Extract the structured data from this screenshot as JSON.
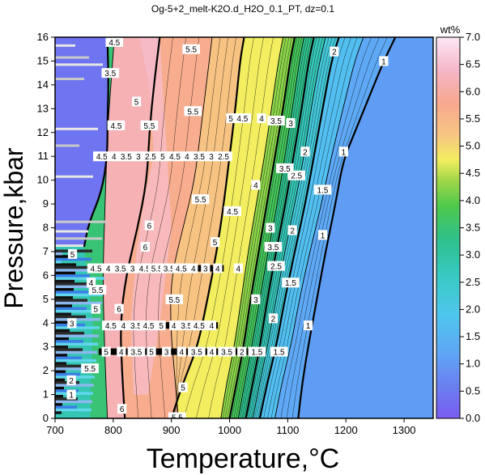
{
  "chart_data": {
    "type": "heatmap",
    "title": "Og-5+2_melt-K2O.d_H2O_0.1_PT, dz=0.1",
    "xlabel": "Temperature,°C",
    "ylabel": "Pressure,kbar",
    "xlim": [
      700,
      1350
    ],
    "ylim": [
      0,
      16
    ],
    "x_ticks": [
      700,
      800,
      900,
      1000,
      1100,
      1200,
      1300
    ],
    "y_ticks": [
      0,
      1,
      2,
      3,
      4,
      5,
      6,
      7,
      8,
      9,
      10,
      11,
      12,
      13,
      14,
      15,
      16
    ],
    "colorbar": {
      "label": "wt%",
      "range": [
        0,
        7
      ],
      "ticks": [
        "0.0",
        "0.5",
        "1.0",
        "1.5",
        "2.0",
        "2.5",
        "3.0",
        "3.5",
        "4.0",
        "4.5",
        "5.0",
        "5.5",
        "6.0",
        "6.5",
        "7.0"
      ],
      "stops": [
        {
          "v": 0.0,
          "color": "#7a5cf0"
        },
        {
          "v": 0.6,
          "color": "#6a80f0"
        },
        {
          "v": 1.2,
          "color": "#5fa6f5"
        },
        {
          "v": 1.9,
          "color": "#4fc6ee"
        },
        {
          "v": 2.6,
          "color": "#38c9c4"
        },
        {
          "v": 3.3,
          "color": "#2fc08a"
        },
        {
          "v": 3.9,
          "color": "#4ec94b"
        },
        {
          "v": 4.4,
          "color": "#a6d84a"
        },
        {
          "v": 4.75,
          "color": "#f2ee60"
        },
        {
          "v": 5.2,
          "color": "#f7c582"
        },
        {
          "v": 5.8,
          "color": "#f7a890"
        },
        {
          "v": 6.4,
          "color": "#f5b6c8"
        },
        {
          "v": 7.0,
          "color": "#fde6f5"
        }
      ]
    },
    "contours": [
      {
        "level": "1",
        "points": [
          [
            1118,
            0
          ],
          [
            1125,
            1.5
          ],
          [
            1135,
            3
          ],
          [
            1150,
            5
          ],
          [
            1165,
            7
          ],
          [
            1182,
            9
          ],
          [
            1195,
            10.8
          ],
          [
            1215,
            12
          ],
          [
            1240,
            13.5
          ],
          [
            1265,
            15
          ],
          [
            1285,
            16
          ]
        ],
        "thick": true
      },
      {
        "level": "1.5",
        "points": [
          [
            1078,
            0
          ],
          [
            1090,
            1.5
          ],
          [
            1105,
            3
          ],
          [
            1120,
            5
          ],
          [
            1138,
            7
          ],
          [
            1158,
            9
          ],
          [
            1175,
            11
          ],
          [
            1195,
            13
          ],
          [
            1215,
            15
          ],
          [
            1230,
            16
          ]
        ],
        "thick": false
      },
      {
        "level": "2",
        "points": [
          [
            1052,
            0
          ],
          [
            1065,
            1.5
          ],
          [
            1080,
            3
          ],
          [
            1095,
            5
          ],
          [
            1112,
            7
          ],
          [
            1130,
            9
          ],
          [
            1145,
            11
          ],
          [
            1160,
            13
          ],
          [
            1175,
            15
          ],
          [
            1188,
            16
          ]
        ],
        "thick": true
      },
      {
        "level": "2.5",
        "points": [
          [
            1040,
            0
          ],
          [
            1052,
            1.5
          ],
          [
            1065,
            3
          ],
          [
            1080,
            5
          ],
          [
            1095,
            7
          ],
          [
            1112,
            9
          ],
          [
            1128,
            11
          ],
          [
            1140,
            13
          ],
          [
            1155,
            15
          ],
          [
            1165,
            16
          ]
        ],
        "thick": false
      },
      {
        "level": "3",
        "points": [
          [
            1028,
            0
          ],
          [
            1040,
            1.5
          ],
          [
            1052,
            3
          ],
          [
            1065,
            5
          ],
          [
            1080,
            7
          ],
          [
            1096,
            9
          ],
          [
            1110,
            11
          ],
          [
            1124,
            13
          ],
          [
            1136,
            15
          ],
          [
            1145,
            16
          ]
        ],
        "thick": true
      },
      {
        "level": "3.5",
        "points": [
          [
            1015,
            0
          ],
          [
            1026,
            1.5
          ],
          [
            1038,
            3
          ],
          [
            1052,
            5
          ],
          [
            1066,
            7
          ],
          [
            1082,
            9
          ],
          [
            1095,
            11
          ],
          [
            1108,
            13
          ],
          [
            1120,
            15
          ],
          [
            1128,
            16
          ]
        ],
        "thick": false
      },
      {
        "level": "4",
        "points": [
          [
            1000,
            0
          ],
          [
            1012,
            1.5
          ],
          [
            1024,
            3
          ],
          [
            1036,
            5
          ],
          [
            1050,
            7
          ],
          [
            1064,
            9
          ],
          [
            1078,
            11
          ],
          [
            1092,
            13
          ],
          [
            1104,
            15
          ],
          [
            1112,
            16
          ]
        ],
        "thick": true
      },
      {
        "level": "4.5",
        "points": [
          [
            985,
            0
          ],
          [
            995,
            1.5
          ],
          [
            1008,
            3
          ],
          [
            1020,
            5
          ],
          [
            1032,
            7
          ],
          [
            1046,
            9
          ],
          [
            1060,
            11
          ],
          [
            1072,
            13
          ],
          [
            1084,
            15
          ],
          [
            1092,
            16
          ]
        ],
        "thick": false
      },
      {
        "level": "5",
        "points": [
          [
            900,
            0
          ],
          [
            920,
            1.5
          ],
          [
            945,
            3
          ],
          [
            962,
            5
          ],
          [
            978,
            7
          ],
          [
            990,
            9
          ],
          [
            1000,
            11
          ],
          [
            1010,
            13
          ],
          [
            1018,
            15
          ],
          [
            1025,
            16
          ]
        ],
        "thick": true
      },
      {
        "level": "5.5",
        "points": [
          [
            912,
            0
          ],
          [
            905,
            2
          ],
          [
            898,
            4
          ],
          [
            900,
            6
          ],
          [
            920,
            8
          ],
          [
            940,
            10
          ],
          [
            950,
            12
          ],
          [
            960,
            14
          ],
          [
            970,
            16
          ]
        ],
        "thick": false
      },
      {
        "level": "6",
        "points": [
          [
            820,
            0
          ],
          [
            815,
            2
          ],
          [
            812,
            4
          ],
          [
            822,
            6
          ],
          [
            842,
            8
          ],
          [
            858,
            10
          ],
          [
            862,
            12
          ],
          [
            870,
            14
          ],
          [
            880,
            16
          ]
        ],
        "thick": true
      },
      {
        "level": "4.5",
        "points": [
          [
            790,
            0
          ],
          [
            785,
            3
          ],
          [
            782,
            6
          ],
          [
            786,
            9
          ],
          [
            790,
            12
          ],
          [
            796,
            14
          ],
          [
            802,
            16
          ]
        ],
        "thick": false
      }
    ],
    "contour_labels": [
      {
        "text": "1",
        "x": 1265,
        "y": 15.0
      },
      {
        "text": "1",
        "x": 1196,
        "y": 11.2
      },
      {
        "text": "1",
        "x": 1160,
        "y": 7.7
      },
      {
        "text": "1",
        "x": 1135,
        "y": 3.9
      },
      {
        "text": "1.5",
        "x": 1160,
        "y": 9.6
      },
      {
        "text": "1.5",
        "x": 1105,
        "y": 5.7
      },
      {
        "text": "1.5",
        "x": 1085,
        "y": 2.8
      },
      {
        "text": "2",
        "x": 1180,
        "y": 15.4
      },
      {
        "text": "2",
        "x": 1130,
        "y": 11.2
      },
      {
        "text": "2",
        "x": 1108,
        "y": 7.9
      },
      {
        "text": "2",
        "x": 1075,
        "y": 4.2
      },
      {
        "text": "2.5",
        "x": 1115,
        "y": 10.2
      },
      {
        "text": "2.5",
        "x": 1080,
        "y": 6.4
      },
      {
        "text": "3",
        "x": 1105,
        "y": 12.4
      },
      {
        "text": "3",
        "x": 1070,
        "y": 8.0
      },
      {
        "text": "3",
        "x": 1045,
        "y": 5.0
      },
      {
        "text": "3.5",
        "x": 1095,
        "y": 10.5
      },
      {
        "text": "3.5",
        "x": 1075,
        "y": 7.2
      },
      {
        "text": "3.5",
        "x": 1080,
        "y": 12.5
      },
      {
        "text": "4",
        "x": 1055,
        "y": 12.6
      },
      {
        "text": "4",
        "x": 1045,
        "y": 9.8
      },
      {
        "text": "4",
        "x": 1015,
        "y": 6.3
      },
      {
        "text": "4.5",
        "x": 1022,
        "y": 12.6
      },
      {
        "text": "4.5",
        "x": 1005,
        "y": 8.7
      },
      {
        "text": "5",
        "x": 1002,
        "y": 12.6
      },
      {
        "text": "5",
        "x": 975,
        "y": 7.4
      },
      {
        "text": "5",
        "x": 920,
        "y": 1.3
      },
      {
        "text": "5.5",
        "x": 934,
        "y": 15.5
      },
      {
        "text": "5.5",
        "x": 937,
        "y": 12.9
      },
      {
        "text": "5.5",
        "x": 950,
        "y": 9.2
      },
      {
        "text": "5.5",
        "x": 905,
        "y": 5.0
      },
      {
        "text": "6",
        "x": 862,
        "y": 8.1
      },
      {
        "text": "6",
        "x": 855,
        "y": 7.2
      },
      {
        "text": "6",
        "x": 810,
        "y": 4.6
      },
      {
        "text": "6",
        "x": 815,
        "y": 0.4
      },
      {
        "text": "5",
        "x": 840,
        "y": 13.3
      },
      {
        "text": "4.5",
        "x": 802,
        "y": 15.8
      },
      {
        "text": "3.5",
        "x": 795,
        "y": 14.5
      },
      {
        "text": "4.5",
        "x": 805,
        "y": 12.3
      },
      {
        "text": "5.5",
        "x": 862,
        "y": 12.3
      },
      {
        "text": "5.5",
        "x": 760,
        "y": 2.1
      },
      {
        "text": "5",
        "x": 770,
        "y": 4.6
      },
      {
        "text": "5.5",
        "x": 773,
        "y": 5.4
      },
      {
        "text": "4",
        "x": 762,
        "y": 5.7
      },
      {
        "text": "2",
        "x": 728,
        "y": 1.6
      },
      {
        "text": "1",
        "x": 728,
        "y": 1.0
      },
      {
        "text": "3",
        "x": 729,
        "y": 4.0
      },
      {
        "text": "5",
        "x": 730,
        "y": 6.9
      },
      {
        "text": "5.5",
        "x": 910,
        "y": 0.05
      }
    ],
    "band_labels": [
      {
        "y": 11.0,
        "labels": [
          "4.5",
          "4",
          "3.5",
          "3",
          "2.5",
          "5",
          "4.5",
          "4",
          "3.5",
          "3",
          "2.5"
        ],
        "x_from": 770,
        "x_to": 1000
      },
      {
        "y": 6.3,
        "labels": [
          "4.5",
          "4",
          "3.5",
          "3",
          "4.5",
          "5.5",
          "3.5",
          "4.5",
          "4",
          "3",
          "4"
        ],
        "x_from": 760,
        "x_to": 990
      },
      {
        "y": 3.9,
        "labels": [
          "4.5",
          "4",
          "3.5",
          "4.5",
          "5",
          "4",
          "3.5",
          "4.5",
          "4"
        ],
        "x_from": 785,
        "x_to": 980
      },
      {
        "y": 2.8,
        "labels": [
          "5",
          "4",
          "3.5",
          "5",
          "3",
          "4",
          "3.5",
          "4",
          "3.5",
          "2",
          "1.5"
        ],
        "x_from": 775,
        "x_to": 1060
      }
    ]
  }
}
